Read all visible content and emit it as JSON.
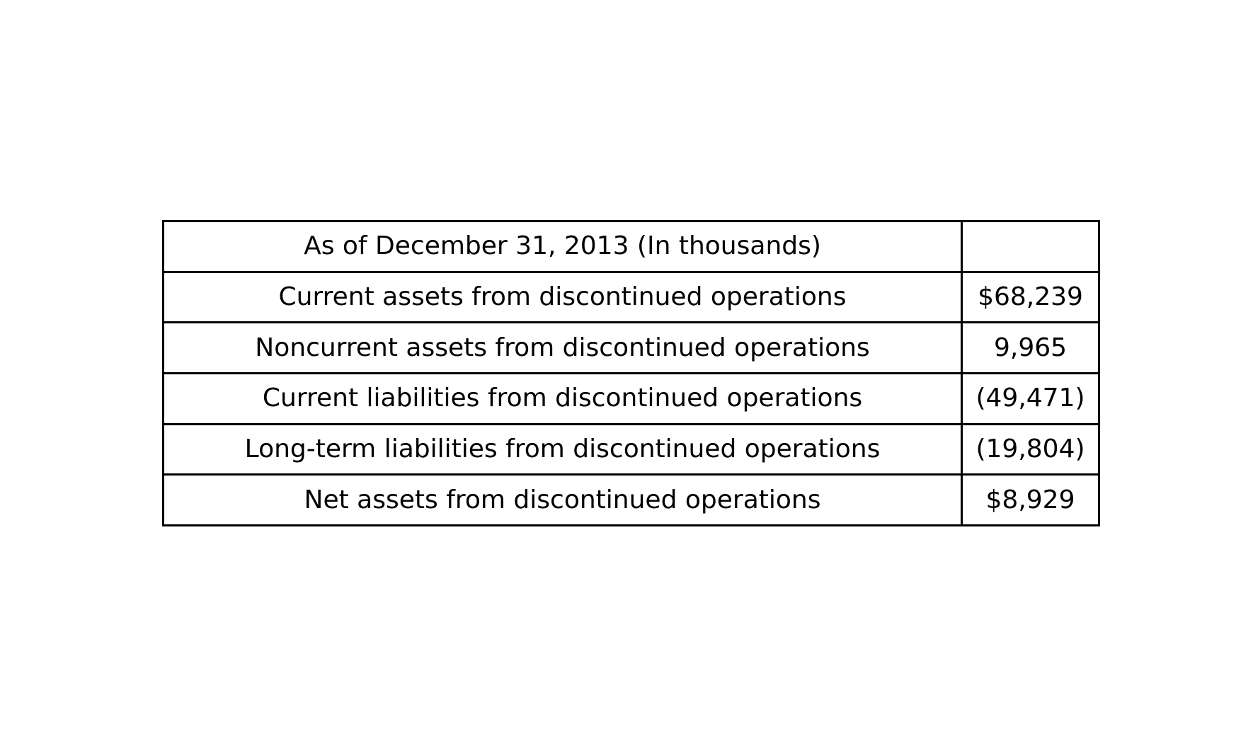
{
  "table": {
    "header": {
      "label": "As of December 31, 2013 (In thousands)",
      "value": ""
    },
    "rows": [
      {
        "label": "Current assets from discontinued operations",
        "value": "$68,239"
      },
      {
        "label": "Noncurrent assets from discontinued operations",
        "value": "9,965"
      },
      {
        "label": "Current liabilities from discontinued operations",
        "value": "(49,471)"
      },
      {
        "label": "Long-term liabilities from discontinued operations",
        "value": "(19,804)"
      },
      {
        "label": "Net assets from discontinued operations",
        "value": "$8,929"
      }
    ]
  }
}
